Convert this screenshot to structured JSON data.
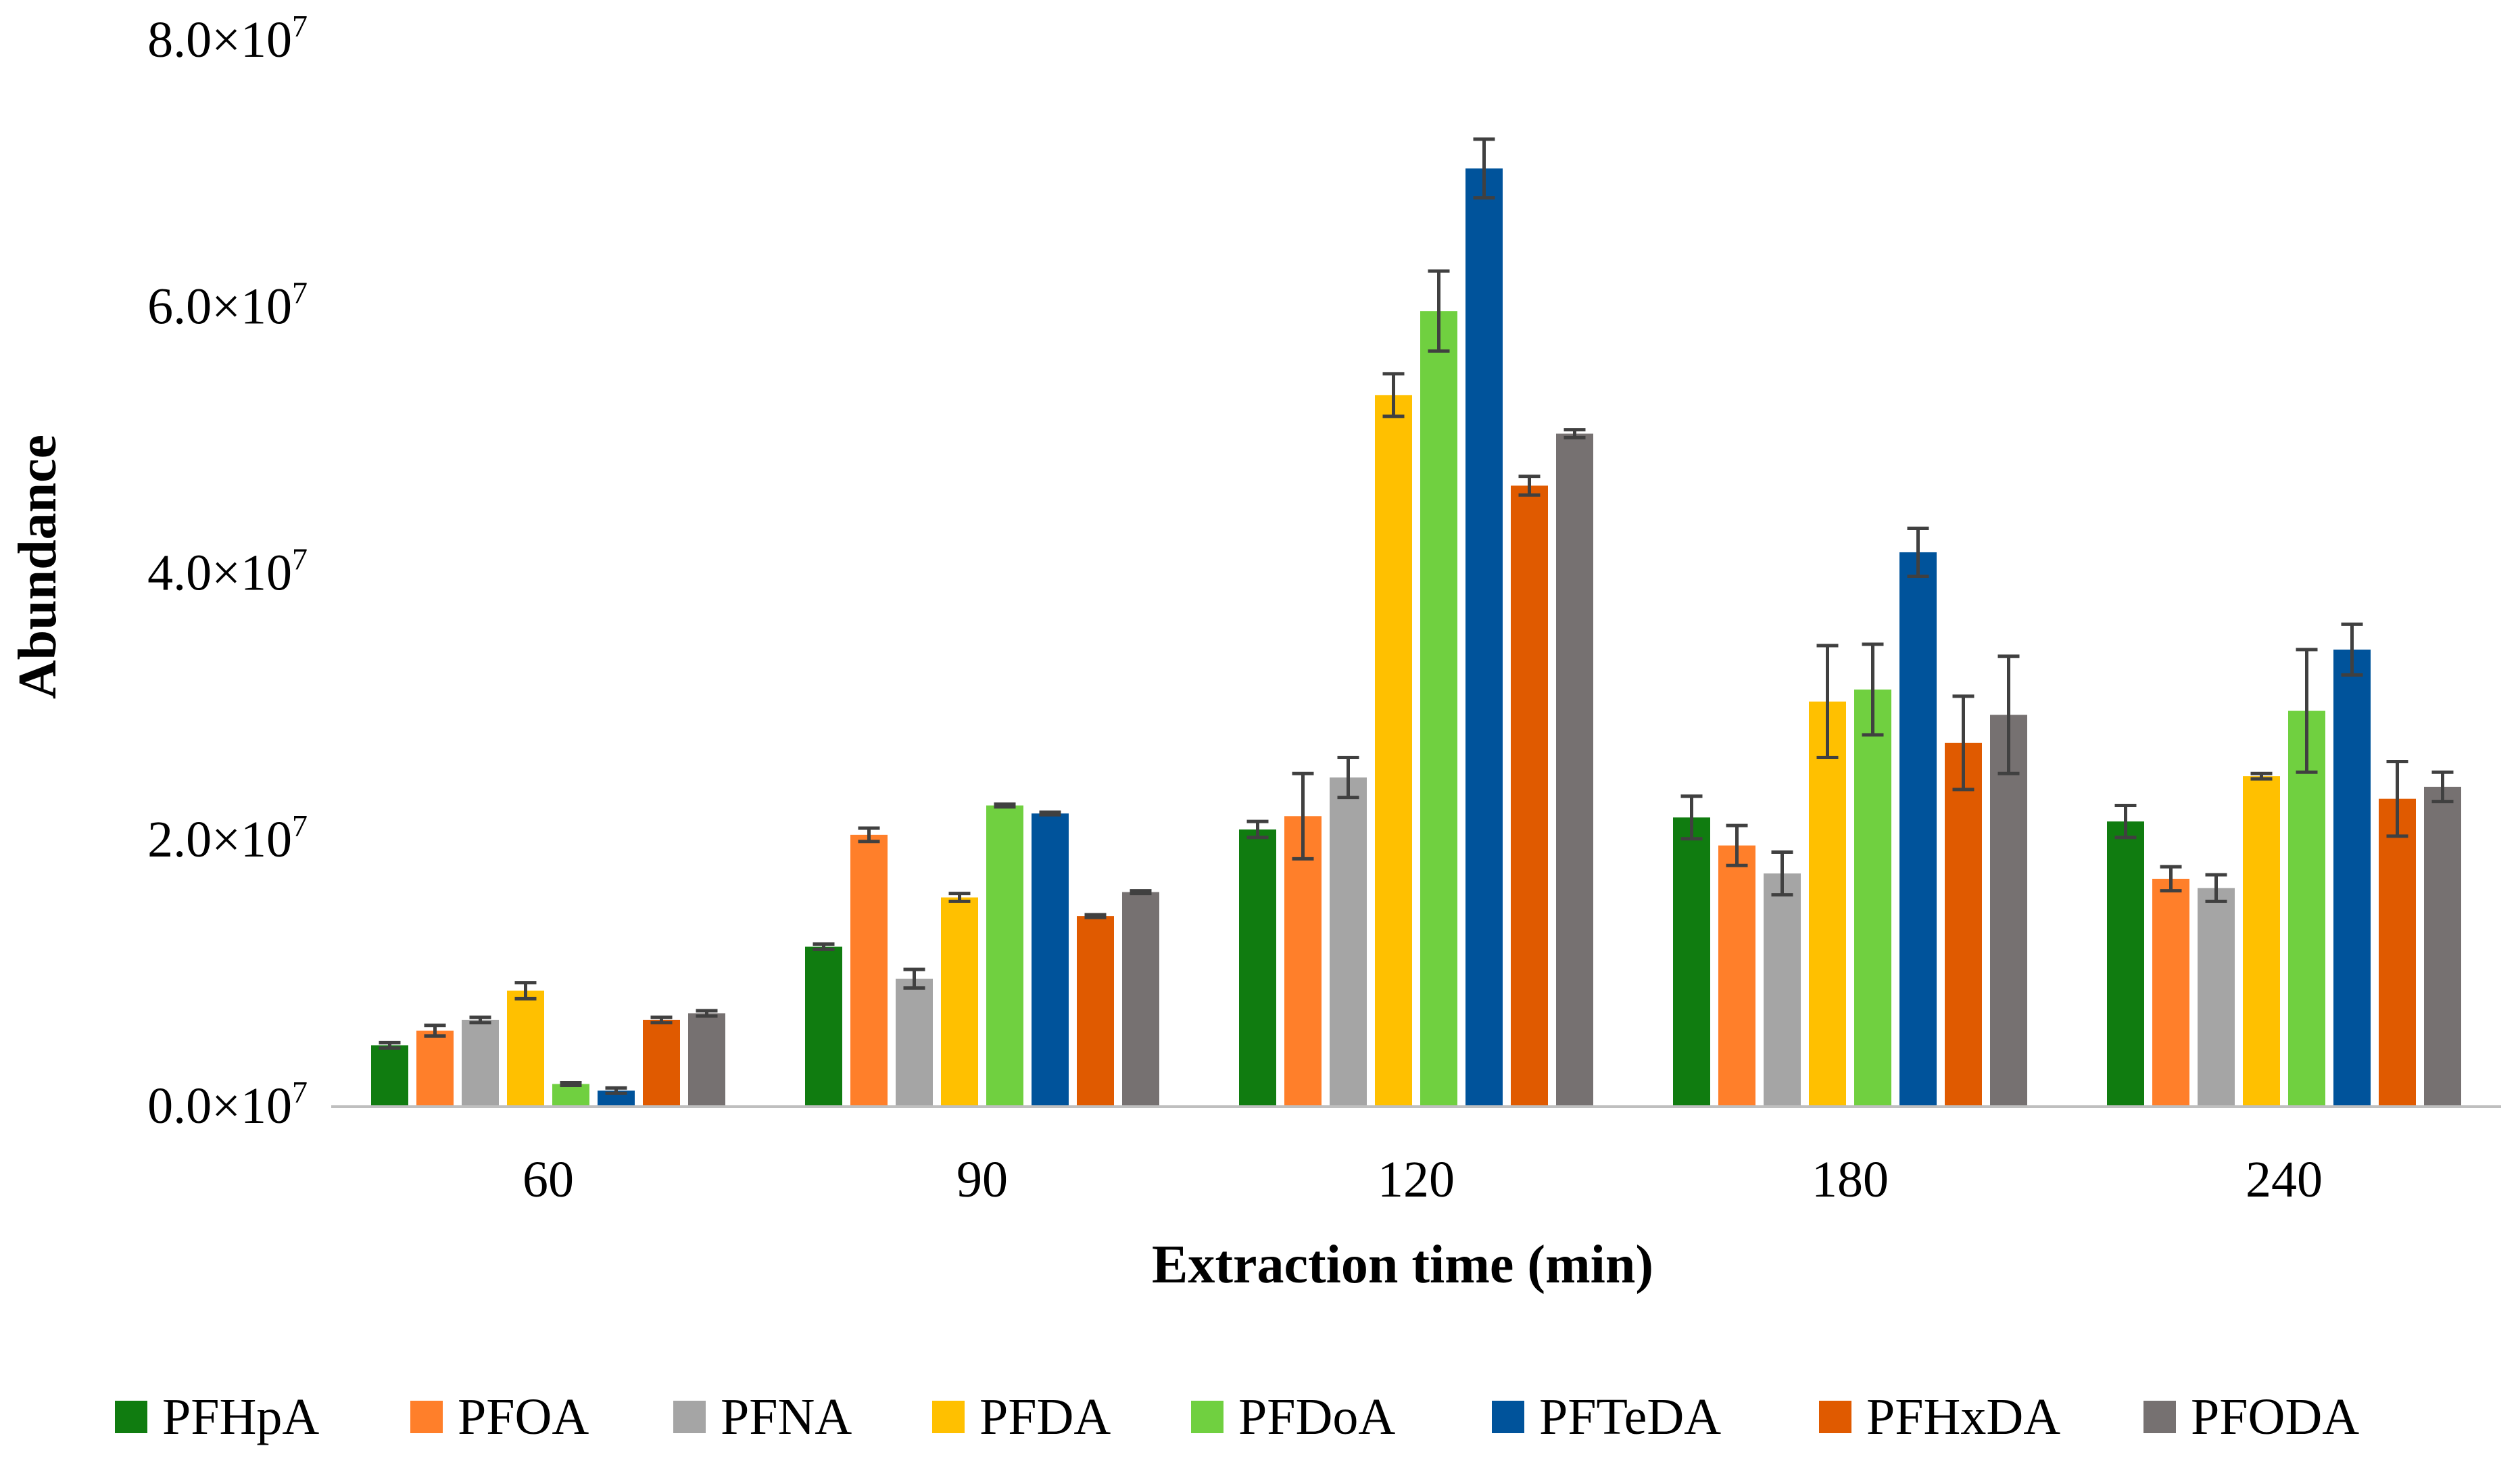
{
  "chart_data": {
    "type": "bar",
    "title": "",
    "xlabel": "Extraction time (min)",
    "ylabel": "Abundance",
    "ylim": [
      0,
      80000000
    ],
    "y_ticks": [
      {
        "value": 0,
        "mantissa": "0.0",
        "times": "×10",
        "exp": "7"
      },
      {
        "value": 20000000,
        "mantissa": "2.0",
        "times": "×10",
        "exp": "7"
      },
      {
        "value": 40000000,
        "mantissa": "4.0",
        "times": "×10",
        "exp": "7"
      },
      {
        "value": 60000000,
        "mantissa": "6.0",
        "times": "×10",
        "exp": "7"
      },
      {
        "value": 80000000,
        "mantissa": "8.0",
        "times": "×10",
        "exp": "7"
      }
    ],
    "grid": false,
    "legend_position": "bottom",
    "categories": [
      "60",
      "90",
      "120",
      "180",
      "240"
    ],
    "series": [
      {
        "name": "PFHpA",
        "color": "#107C10",
        "values": [
          4600000,
          12000000,
          20800000,
          21700000,
          21400000
        ],
        "errors": [
          200000,
          200000,
          600000,
          1600000,
          1200000
        ]
      },
      {
        "name": "PFOA",
        "color": "#FF7F2A",
        "values": [
          5700000,
          20400000,
          21800000,
          19600000,
          17100000
        ],
        "errors": [
          400000,
          500000,
          3200000,
          1500000,
          900000
        ]
      },
      {
        "name": "PFNA",
        "color": "#A5A5A5",
        "values": [
          6500000,
          9600000,
          24700000,
          17500000,
          16400000
        ],
        "errors": [
          200000,
          700000,
          1500000,
          1600000,
          1000000
        ]
      },
      {
        "name": "PFDA",
        "color": "#FFC000",
        "values": [
          8700000,
          15700000,
          53400000,
          30400000,
          24800000
        ],
        "errors": [
          600000,
          300000,
          1600000,
          4200000,
          200000
        ]
      },
      {
        "name": "PFDoA",
        "color": "#70D040",
        "values": [
          1700000,
          22600000,
          59700000,
          31300000,
          29700000
        ],
        "errors": [
          100000,
          100000,
          3000000,
          3400000,
          4600000
        ]
      },
      {
        "name": "PFTeDA",
        "color": "#00539B",
        "values": [
          1200000,
          22000000,
          70400000,
          41600000,
          34300000
        ],
        "errors": [
          200000,
          100000,
          2200000,
          1800000,
          1900000
        ]
      },
      {
        "name": "PFHxDA",
        "color": "#E05A00",
        "values": [
          6500000,
          14300000,
          46600000,
          27300000,
          23100000
        ],
        "errors": [
          200000,
          100000,
          700000,
          3500000,
          2800000
        ]
      },
      {
        "name": "PFODA",
        "color": "#767171",
        "values": [
          7000000,
          16100000,
          50500000,
          29400000,
          24000000
        ],
        "errors": [
          200000,
          100000,
          300000,
          4400000,
          1100000
        ]
      }
    ]
  }
}
